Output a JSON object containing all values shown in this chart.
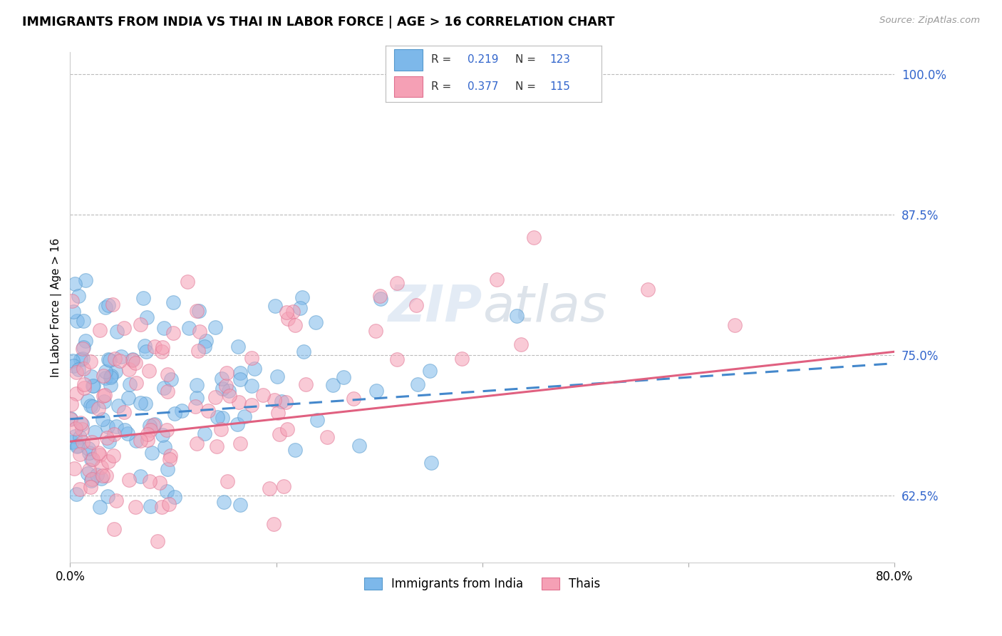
{
  "title": "IMMIGRANTS FROM INDIA VS THAI IN LABOR FORCE | AGE > 16 CORRELATION CHART",
  "source": "Source: ZipAtlas.com",
  "ylabel": "In Labor Force | Age > 16",
  "ytick_labels": [
    "62.5%",
    "75.0%",
    "87.5%",
    "100.0%"
  ],
  "ytick_values": [
    0.625,
    0.75,
    0.875,
    1.0
  ],
  "xmin": 0.0,
  "xmax": 0.8,
  "ymin": 0.565,
  "ymax": 1.02,
  "india_color": "#7DB8EA",
  "india_edge_color": "#5599CC",
  "thai_color": "#F5A0B5",
  "thai_edge_color": "#E07090",
  "india_line_color": "#4488CC",
  "thai_line_color": "#E06080",
  "india_R": 0.219,
  "india_N": 123,
  "thai_R": 0.377,
  "thai_N": 115,
  "watermark_color": "#C8D8EC",
  "legend_text_color": "#3366CC",
  "ytick_color": "#3366CC",
  "india_line_intercept": 0.693,
  "india_line_slope": 0.062,
  "thai_line_intercept": 0.673,
  "thai_line_slope": 0.1
}
